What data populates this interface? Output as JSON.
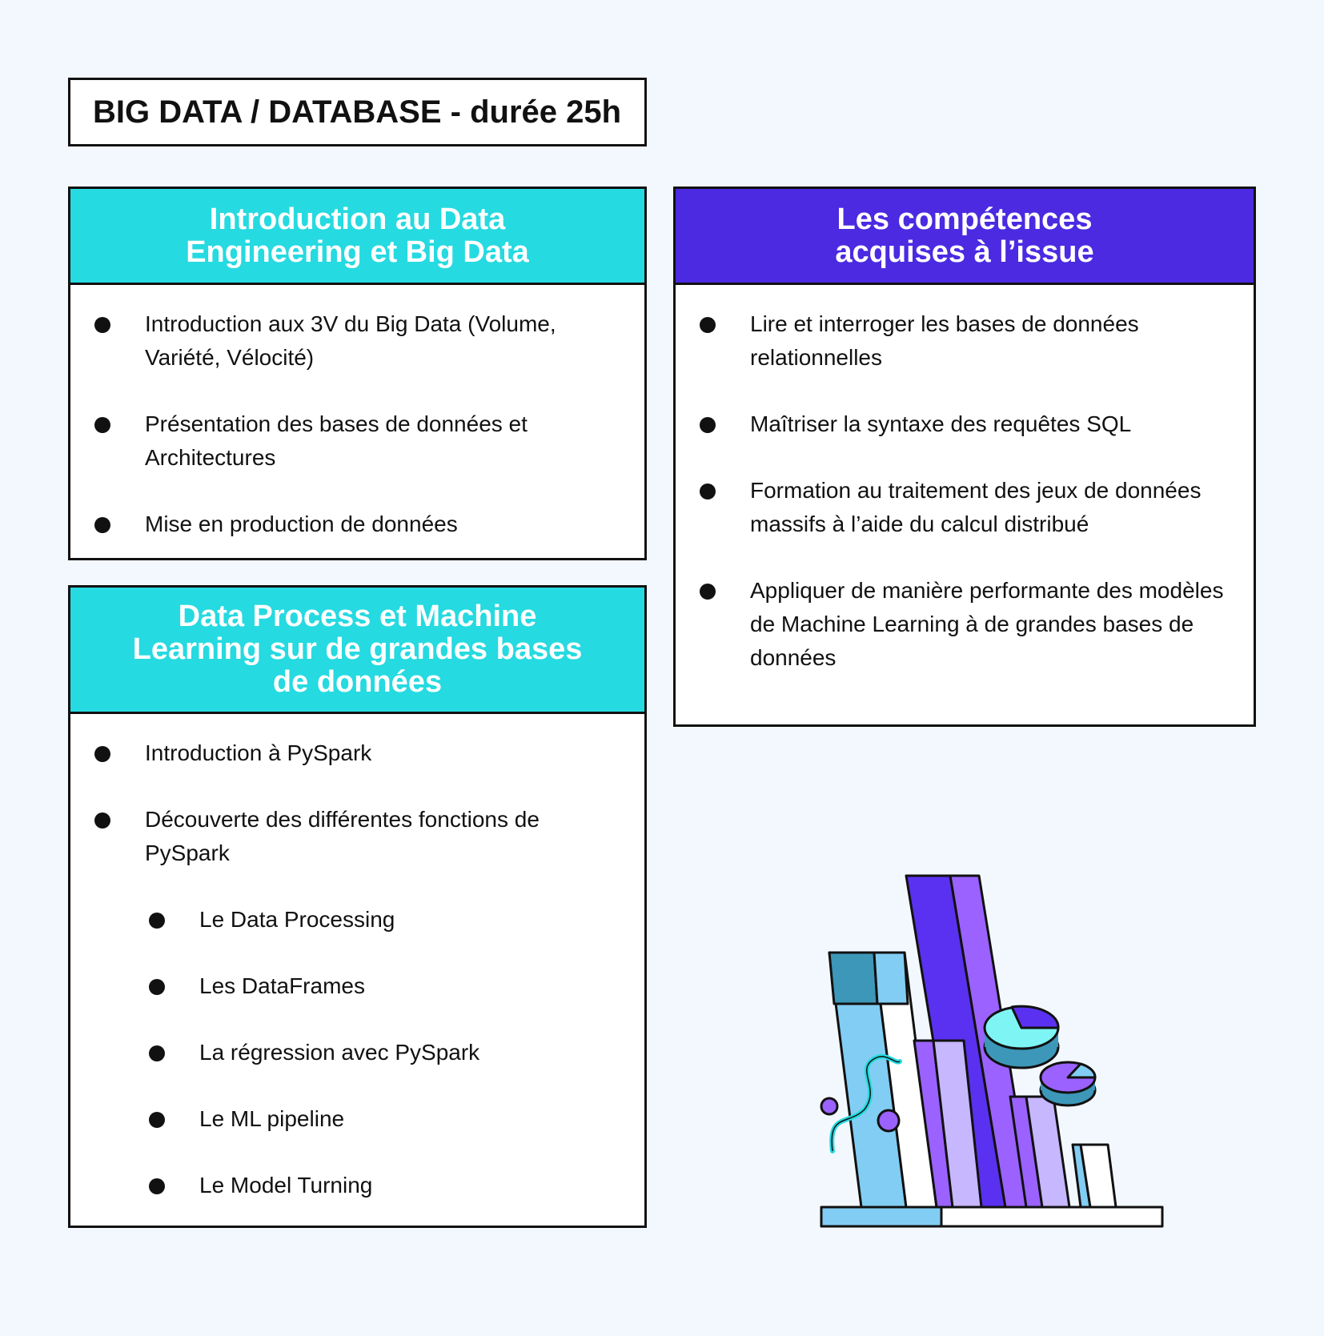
{
  "page_title": "BIG DATA / DATABASE - durée 25h",
  "cards": {
    "intro": {
      "heading": "Introduction au Data\nEngineering et Big Data",
      "items": [
        "Introduction aux 3V du Big Data (Volume, Variété, Vélocité)",
        "Présentation des bases de données et Architectures",
        "Mise en production de données"
      ]
    },
    "process": {
      "heading": "Data Process et Machine\nLearning sur de grandes bases\nde données",
      "items": [
        "Introduction à PySpark",
        "Découverte des différentes fonctions de PySpark"
      ],
      "sub_items": [
        "Le Data Processing",
        "Les DataFrames",
        "La régression avec PySpark",
        "Le ML pipeline",
        "Le Model Turning"
      ]
    },
    "skills": {
      "heading": "Les compétences\nacquises à l’issue",
      "items": [
        "Lire et interroger les bases de données relationnelles",
        "Maîtriser la syntaxe des requêtes SQL",
        "Formation au traitement des jeux de données massifs à l’aide du calcul distribué",
        "Appliquer de manière performante des modèles de Machine Learning à de grandes bases de données"
      ]
    }
  },
  "colors": {
    "cyan": "#25dae0",
    "violet": "#4b2ae2",
    "background": "#f3f8fe"
  },
  "illustration": "bar-chart-illustration"
}
